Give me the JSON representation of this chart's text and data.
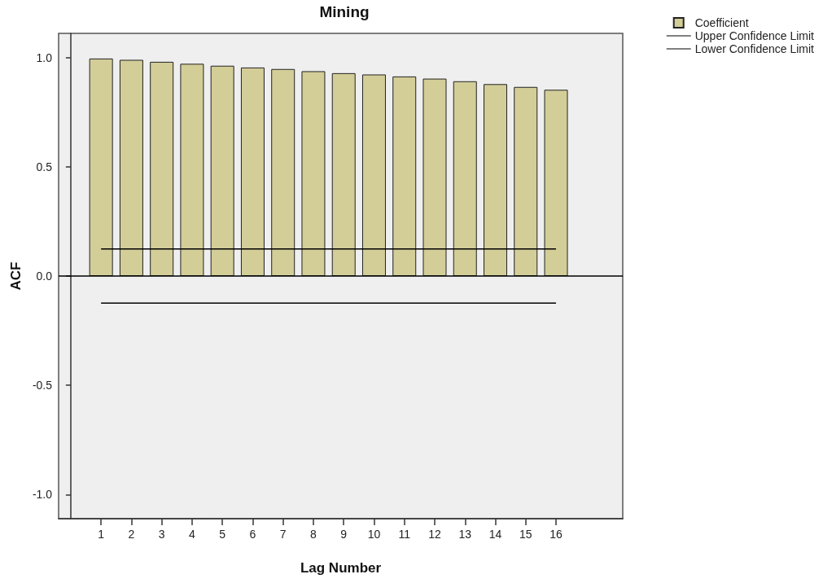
{
  "chart_data": {
    "type": "bar",
    "title": "Mining",
    "xlabel": "Lag Number",
    "ylabel": "ACF",
    "x": [
      1,
      2,
      3,
      4,
      5,
      6,
      7,
      8,
      9,
      10,
      11,
      12,
      13,
      14,
      15,
      16
    ],
    "xlim": [
      -0.4,
      18.2
    ],
    "xticks": [
      1,
      2,
      3,
      4,
      5,
      6,
      7,
      8,
      9,
      10,
      11,
      12,
      13,
      14,
      15,
      16
    ],
    "ylim": [
      -1.11,
      1.11
    ],
    "yticks": [
      {
        "value": -1,
        "label": "-1.0"
      },
      -0.5,
      {
        "value": 0,
        "label": "0.0"
      },
      0.5,
      {
        "value": 1,
        "label": "1.0"
      }
    ],
    "series": [
      {
        "name": "Coefficient",
        "color": "#d3cd98",
        "values": [
          0.995,
          0.989,
          0.98,
          0.971,
          0.962,
          0.954,
          0.947,
          0.937,
          0.928,
          0.922,
          0.913,
          0.903,
          0.891,
          0.878,
          0.865,
          0.852
        ]
      },
      {
        "name": "Upper Confidence Limit",
        "type": "line",
        "color": "#000000",
        "values": [
          0.124,
          0.124,
          0.124,
          0.124,
          0.124,
          0.124,
          0.124,
          0.124,
          0.124,
          0.124,
          0.124,
          0.124,
          0.124,
          0.124,
          0.124,
          0.124
        ]
      },
      {
        "name": "Lower Confidence Limit",
        "type": "line",
        "color": "#000000",
        "values": [
          -0.124,
          -0.124,
          -0.124,
          -0.124,
          -0.124,
          -0.124,
          -0.124,
          -0.124,
          -0.124,
          -0.124,
          -0.124,
          -0.124,
          -0.124,
          -0.124,
          -0.124,
          -0.124
        ]
      }
    ],
    "ref_lines": [
      {
        "axis": "y",
        "value": 0,
        "color": "#000000"
      }
    ],
    "legend": "top right",
    "grid": false,
    "marker": "none",
    "line_style": "solid"
  }
}
